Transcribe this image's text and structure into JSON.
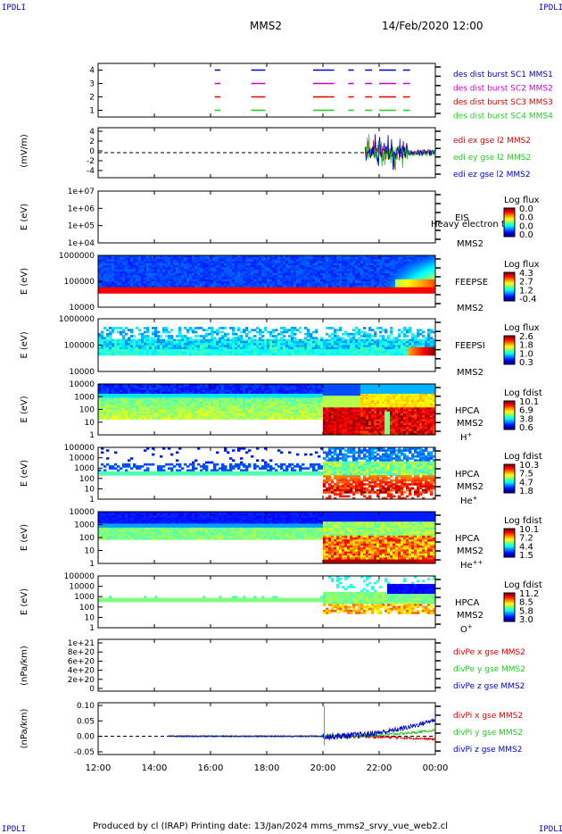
{
  "corners": {
    "tl": "IPDLI",
    "tr": "IPDLI",
    "bl": "IPDLI",
    "br": "IPDLI"
  },
  "header": {
    "spacecraft": "MMS2",
    "datetime": "14/Feb/2020 12:00"
  },
  "footer": {
    "text": "Produced by cl (IRAP)   Printing date: 13/Jan/2024   mms_mms2_srvy_vue_web2.cl"
  },
  "colors": {
    "frame": "#000000",
    "red": "#dd0000",
    "green": "#22cc22",
    "blue": "#0000cc",
    "magenta": "#cc00cc",
    "label_blue": "#0000aa"
  },
  "chart_data": {
    "type": "multi-panel time series",
    "x_ticks": [
      "12:00",
      "14:00",
      "16:00",
      "18:00",
      "20:00",
      "22:00",
      "00:00"
    ],
    "x_range_hours": [
      12,
      24
    ],
    "panels": [
      {
        "id": "burst",
        "type": "timeline",
        "ylabel": "",
        "yticks": [
          "4",
          "3",
          "2",
          "1"
        ],
        "series": [
          {
            "name": "des dist burst SC1 MMS1",
            "color": "#0000cc",
            "level": 4,
            "intervals": [
              [
                16.15,
                16.35
              ],
              [
                17.45,
                17.95
              ],
              [
                19.65,
                20.4
              ],
              [
                20.9,
                21.1
              ],
              [
                21.5,
                21.75
              ],
              [
                22.0,
                22.6
              ],
              [
                22.85,
                23.1
              ]
            ]
          },
          {
            "name": "des dist burst SC2 MMS2",
            "color": "#cc00cc",
            "level": 3,
            "intervals": [
              [
                16.15,
                16.35
              ],
              [
                17.45,
                17.95
              ],
              [
                19.65,
                20.4
              ],
              [
                20.9,
                21.1
              ],
              [
                21.5,
                21.75
              ],
              [
                22.0,
                22.6
              ],
              [
                22.85,
                23.1
              ]
            ]
          },
          {
            "name": "des dist burst SC3 MMS3",
            "color": "#dd0000",
            "level": 2,
            "intervals": [
              [
                16.15,
                16.35
              ],
              [
                17.45,
                17.95
              ],
              [
                19.65,
                20.4
              ],
              [
                20.9,
                21.1
              ],
              [
                21.5,
                21.75
              ],
              [
                22.0,
                22.6
              ],
              [
                22.85,
                23.1
              ]
            ]
          },
          {
            "name": "des dist burst SC4 MMS4",
            "color": "#22cc22",
            "level": 1,
            "intervals": [
              [
                16.15,
                16.35
              ],
              [
                17.45,
                17.95
              ],
              [
                19.65,
                20.4
              ],
              [
                20.9,
                21.1
              ],
              [
                21.5,
                21.75
              ],
              [
                22.0,
                22.6
              ],
              [
                22.85,
                23.1
              ]
            ]
          }
        ],
        "label_order": [
          "des dist burst SC1 MMS1",
          "des dist burst SC2 MMS2",
          "des dist burst SC3 MMS3",
          "des dist burst SC4 MMS4"
        ],
        "label_colors": [
          "#0000cc",
          "#cc00cc",
          "#dd0000",
          "#22cc22"
        ]
      },
      {
        "id": "edi",
        "type": "line",
        "ylabel": "(mV/m)",
        "yticks": [
          "4",
          "2",
          "0",
          "-2",
          "-4"
        ],
        "ylim": [
          -5,
          5
        ],
        "zero_line": true,
        "activity_start": 21.5,
        "amplitude": 4,
        "series": [
          {
            "name": "edi ex gse l2 MMS2",
            "color": "#dd0000"
          },
          {
            "name": "edi ey gse l2 MMS2",
            "color": "#22cc22"
          },
          {
            "name": "edi ez gse l2 MMS2",
            "color": "#0000cc"
          }
        ]
      },
      {
        "id": "eis",
        "type": "spectrogram",
        "ylabel": "E (eV)",
        "yticks": [
          "1e+07",
          "1e+06",
          "1e+05",
          "1e+04"
        ],
        "instrument": "EIS",
        "instrument_extra": "Heavy electron to",
        "mms": "MMS2",
        "colorbar_title": "Log flux",
        "colorbar_ticks": [
          "0.0",
          "0.0",
          "0.0",
          "0.0"
        ],
        "model": "empty"
      },
      {
        "id": "feepse",
        "type": "spectrogram",
        "ylabel": "E (eV)",
        "yticks": [
          "1000000",
          "100000",
          "10000"
        ],
        "instrument": "FEEPSE",
        "mms": "MMS2",
        "colorbar_title": "Log flux",
        "colorbar_ticks": [
          "4.3",
          "2.7",
          "1.2",
          "-0.4"
        ],
        "model": "feepse"
      },
      {
        "id": "feepsi",
        "type": "spectrogram",
        "ylabel": "E (eV)",
        "yticks": [
          "1000000",
          "100000",
          "10000"
        ],
        "instrument": "FEEPSI",
        "mms": "MMS2",
        "colorbar_title": "Log flux",
        "colorbar_ticks": [
          "2.6",
          "1.8",
          "1.0",
          "0.3"
        ],
        "model": "feepsi"
      },
      {
        "id": "hpca_h",
        "type": "spectrogram",
        "ylabel": "E (eV)",
        "yticks": [
          "10000",
          "1000",
          "100",
          "10",
          "1"
        ],
        "instrument": "HPCA",
        "mms": "MMS2",
        "species": "H",
        "species_sup": "+",
        "colorbar_title": "Log fdist",
        "colorbar_ticks": [
          "10.1",
          "6.9",
          "3.8",
          "0.6"
        ],
        "model": "hpca_h"
      },
      {
        "id": "hpca_he",
        "type": "spectrogram",
        "ylabel": "E (eV)",
        "yticks": [
          "100000",
          "10000",
          "1000",
          "100",
          "10",
          "1"
        ],
        "instrument": "HPCA",
        "mms": "MMS2",
        "species": "He",
        "species_sup": "+",
        "colorbar_title": "Log fdist",
        "colorbar_ticks": [
          "10.3",
          "7.5",
          "4.7",
          "1.8"
        ],
        "model": "hpca_he"
      },
      {
        "id": "hpca_hepp",
        "type": "spectrogram",
        "ylabel": "E (eV)",
        "yticks": [
          "10000",
          "1000",
          "100",
          "10",
          "1"
        ],
        "instrument": "HPCA",
        "mms": "MMS2",
        "species": "He",
        "species_sup": "++",
        "colorbar_title": "Log fdist",
        "colorbar_ticks": [
          "10.1",
          "7.2",
          "4.4",
          "1.5"
        ],
        "model": "hpca_hepp"
      },
      {
        "id": "hpca_o",
        "type": "spectrogram",
        "ylabel": "E (eV)",
        "yticks": [
          "100000",
          "10000",
          "1000",
          "100",
          "10",
          "1"
        ],
        "instrument": "HPCA",
        "mms": "MMS2",
        "species": "O",
        "species_sup": "+",
        "colorbar_title": "Log fdist",
        "colorbar_ticks": [
          "11.2",
          "8.5",
          "5.8",
          "3.0"
        ],
        "model": "hpca_o"
      },
      {
        "id": "divpe",
        "type": "line",
        "ylabel": "(nPa/km)",
        "yticks": [
          "1e+21",
          "8e+20",
          "6e+20",
          "4e+20",
          "2e+20",
          "0"
        ],
        "ylim": [
          0,
          1.1e+21
        ],
        "zero_line": true,
        "series": [
          {
            "name": "divPe x gse MMS2",
            "color": "#dd0000"
          },
          {
            "name": "divPe y gse MMS2",
            "color": "#22cc22"
          },
          {
            "name": "divPe z gse MMS2",
            "color": "#0000cc"
          }
        ]
      },
      {
        "id": "divpi",
        "type": "line",
        "ylabel": "(nPa/km)",
        "yticks": [
          "0.10",
          "0.05",
          "0.00",
          "-0.05"
        ],
        "ylim": [
          -0.06,
          0.11
        ],
        "zero_line": true,
        "activity_start": 20.0,
        "series": [
          {
            "name": "divPi x gse MMS2",
            "color": "#dd0000",
            "end_value": -0.01
          },
          {
            "name": "divPi y gse MMS2",
            "color": "#22cc22",
            "end_value": 0.02
          },
          {
            "name": "divPi z gse MMS2",
            "color": "#0000cc",
            "end_value": 0.055
          }
        ]
      }
    ]
  }
}
